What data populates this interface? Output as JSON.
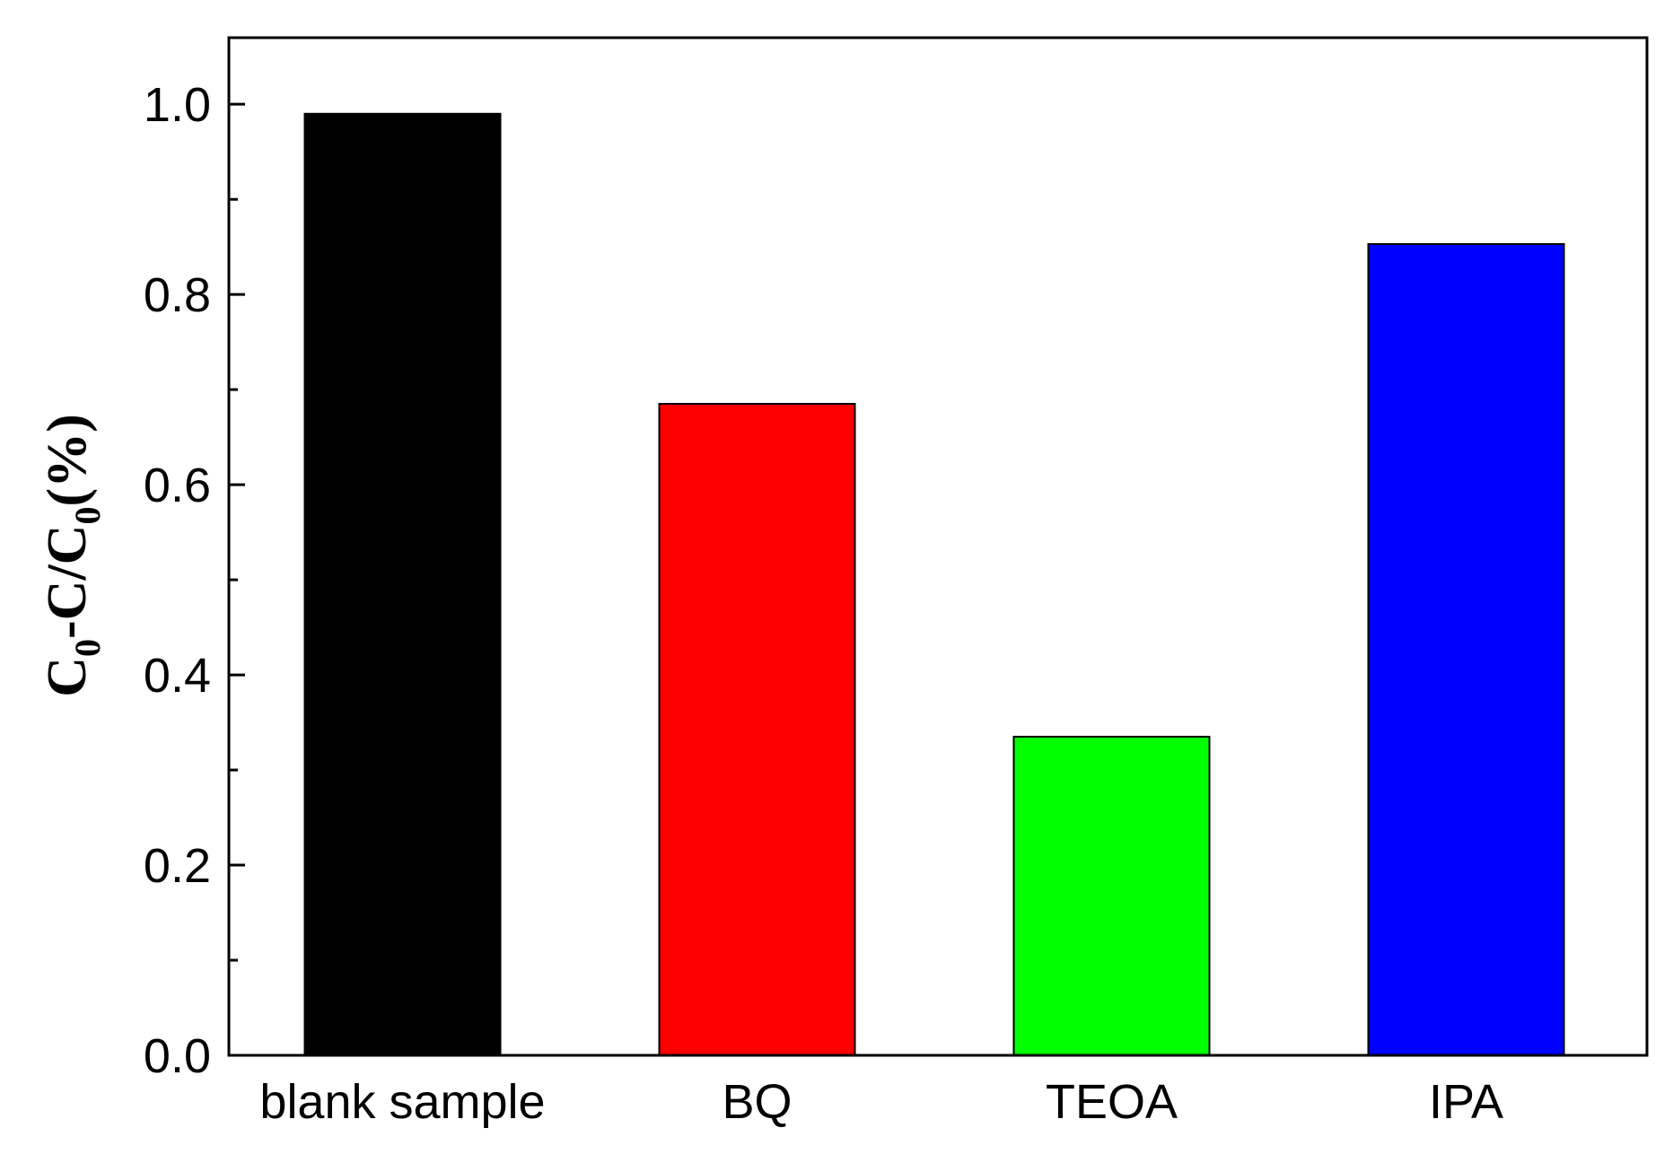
{
  "chart_data": {
    "type": "bar",
    "categories": [
      "blank sample",
      "BQ",
      "TEOA",
      "IPA"
    ],
    "values": [
      0.99,
      0.685,
      0.335,
      0.853
    ],
    "colors": [
      "#000000",
      "#ff0000",
      "#00ff00",
      "#0000ff"
    ],
    "ylabel": "C₀-C/C₀(%)",
    "ylabel_parts": {
      "c1": "C",
      "sub1": "0",
      "mid": "-C/C",
      "sub2": "0",
      "tail": "(%)"
    },
    "ylim": [
      0,
      1.07
    ],
    "yticks": [
      0.0,
      0.2,
      0.4,
      0.6,
      0.8,
      1.0
    ],
    "ytick_labels": [
      "0.0",
      "0.2",
      "0.4",
      "0.6",
      "0.8",
      "1.0"
    ],
    "minor_ytick_step": 0.1,
    "grid": false,
    "legend": "none"
  }
}
